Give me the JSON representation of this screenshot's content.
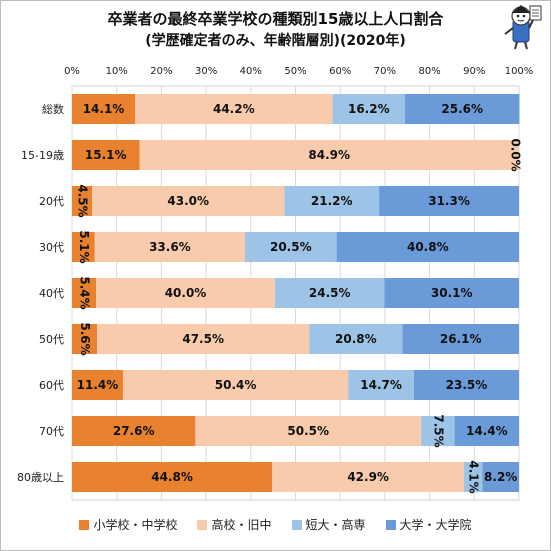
{
  "title_line1": "卒業者の最終卒業学校の種類別15歳以上人口割合",
  "title_line2": "(学歴確定者のみ、年齢階層別)(2020年)",
  "chart_data": {
    "type": "bar",
    "orientation": "horizontal",
    "stacked": "percent",
    "categories": [
      "総数",
      "15-19歳",
      "20代",
      "30代",
      "40代",
      "50代",
      "60代",
      "70代",
      "80歳以上"
    ],
    "series": [
      {
        "name": "小学校・中学校",
        "color": "#e8822e",
        "values": [
          14.1,
          15.1,
          4.5,
          5.1,
          5.4,
          5.6,
          11.4,
          27.6,
          44.8
        ]
      },
      {
        "name": "高校・旧中",
        "color": "#f8cbad",
        "values": [
          44.2,
          84.9,
          43.0,
          33.6,
          40.0,
          47.5,
          50.4,
          50.5,
          42.9
        ]
      },
      {
        "name": "短大・高専",
        "color": "#9dc3e6",
        "values": [
          16.2,
          0.0,
          21.2,
          20.5,
          24.5,
          20.8,
          14.7,
          7.5,
          4.1
        ]
      },
      {
        "name": "大学・大学院",
        "color": "#6a9bd8",
        "values": [
          25.6,
          0.0,
          31.3,
          40.8,
          30.1,
          26.1,
          23.5,
          14.4,
          8.2
        ]
      }
    ],
    "data_labels": [
      [
        "14.1%",
        "44.2%",
        "16.2%",
        "25.6%"
      ],
      [
        "15.1%",
        "84.9%",
        "",
        "0.0%"
      ],
      [
        "4.5%",
        "43.0%",
        "21.2%",
        "31.3%"
      ],
      [
        "5.1%",
        "33.6%",
        "20.5%",
        "40.8%"
      ],
      [
        "5.4%",
        "40.0%",
        "24.5%",
        "30.1%"
      ],
      [
        "5.6%",
        "47.5%",
        "20.8%",
        "26.1%"
      ],
      [
        "11.4%",
        "50.4%",
        "14.7%",
        "23.5%"
      ],
      [
        "27.6%",
        "50.5%",
        "7.5%",
        "14.4%"
      ],
      [
        "44.8%",
        "42.9%",
        "4.1%",
        "8.2%"
      ]
    ],
    "xlim": [
      0,
      100
    ],
    "x_ticks": [
      "0%",
      "10%",
      "20%",
      "30%",
      "40%",
      "50%",
      "60%",
      "70%",
      "80%",
      "90%",
      "100%"
    ],
    "grid": true,
    "legend_position": "bottom"
  }
}
